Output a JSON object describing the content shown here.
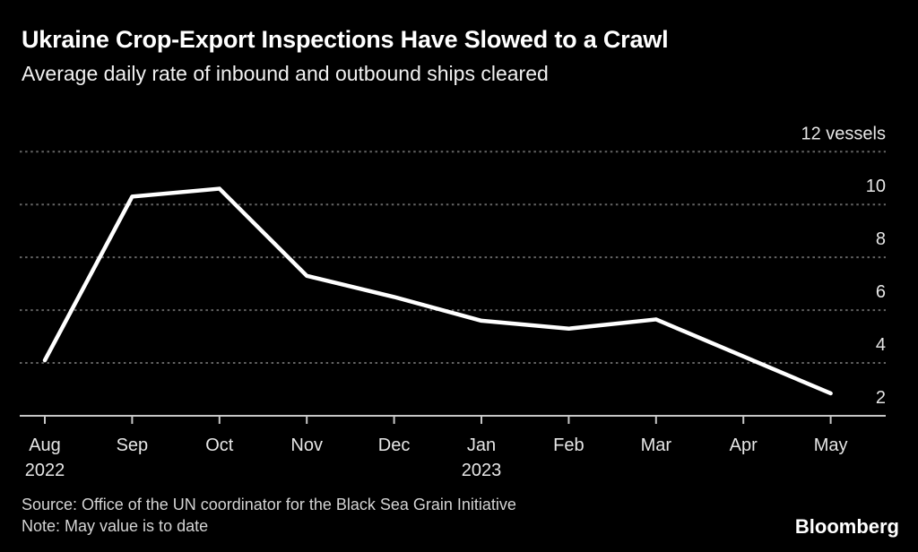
{
  "chart_data": {
    "type": "line",
    "title": "Ukraine Crop-Export Inspections Have Slowed to a Crawl",
    "subtitle": "Average daily rate of inbound and outbound ships cleared",
    "categories": [
      "Aug",
      "Sep",
      "Oct",
      "Nov",
      "Dec",
      "Jan",
      "Feb",
      "Mar",
      "Apr",
      "May"
    ],
    "x_year_labels": [
      {
        "index": 0,
        "label": "2022"
      },
      {
        "index": 5,
        "label": "2023"
      }
    ],
    "series": [
      {
        "name": "Average daily ships cleared",
        "values": [
          4.1,
          10.3,
          10.6,
          7.3,
          6.5,
          5.6,
          5.3,
          5.65,
          4.25,
          2.85
        ]
      }
    ],
    "ylim": [
      2,
      12
    ],
    "y_ticks": [
      2,
      4,
      6,
      8,
      10,
      12
    ],
    "y_unit_suffix": " vessels",
    "xlabel": "",
    "ylabel": "vessels",
    "grid": "horizontal-dotted",
    "legend": "none"
  },
  "footer": {
    "source": "Source: Office of the UN coordinator for the Black Sea Grain Initiative",
    "note": "Note: May value is to date",
    "brand": "Bloomberg"
  },
  "colors": {
    "background": "#000000",
    "title": "#ffffff",
    "subtitle": "#f1f1f1",
    "gridline": "#646464",
    "axis": "#c7c7c7",
    "tick_label": "#e6e6e6",
    "footer_text": "#d4d4d4",
    "line": "#ffffff"
  }
}
